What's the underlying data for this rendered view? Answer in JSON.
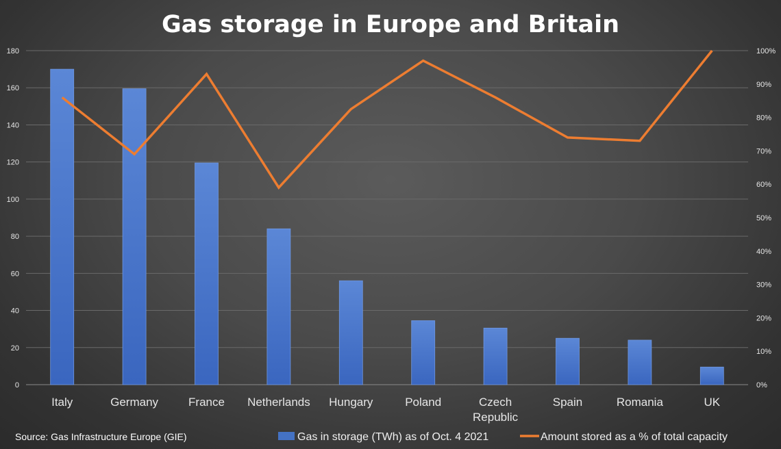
{
  "chart_data": {
    "type": "bar",
    "title": "Gas storage in Europe and Britain",
    "source": "Source: Gas Infrastructure Europe (GIE)",
    "categories": [
      "Italy",
      "Germany",
      "France",
      "Netherlands",
      "Hungary",
      "Poland",
      "Czech Republic",
      "Spain",
      "Romania",
      "UK"
    ],
    "category_lines": [
      [
        "Italy"
      ],
      [
        "Germany"
      ],
      [
        "France"
      ],
      [
        "Netherlands"
      ],
      [
        "Hungary"
      ],
      [
        "Poland"
      ],
      [
        "Czech",
        "Republic"
      ],
      [
        "Spain"
      ],
      [
        "Romania"
      ],
      [
        "UK"
      ]
    ],
    "series": [
      {
        "name": "Gas in storage (TWh) as of Oct. 4 2021",
        "type": "bar",
        "axis": "left",
        "color": "#4472c4",
        "values": [
          170,
          159.5,
          119.5,
          84,
          56,
          34.5,
          30.5,
          25,
          24,
          9.5
        ]
      },
      {
        "name": "Amount stored as a % of total capacity",
        "type": "line",
        "axis": "right",
        "color": "#ed7d31",
        "values": [
          86,
          69,
          93,
          59,
          82.5,
          97,
          86,
          74,
          73,
          100
        ]
      }
    ],
    "y_left": {
      "min": 0,
      "max": 180,
      "ticks": [
        0,
        20,
        40,
        60,
        80,
        100,
        120,
        140,
        160,
        180
      ],
      "tick_labels": [
        "0",
        "20",
        "40",
        "60",
        "80",
        "100",
        "120",
        "140",
        "160",
        "180"
      ]
    },
    "y_right": {
      "min": 0,
      "max": 100,
      "ticks": [
        0,
        10,
        20,
        30,
        40,
        50,
        60,
        70,
        80,
        90,
        100
      ],
      "tick_labels": [
        "0%",
        "10%",
        "20%",
        "30%",
        "40%",
        "50%",
        "60%",
        "70%",
        "80%",
        "90%",
        "100%"
      ]
    },
    "grid": true,
    "legend": "bottom"
  }
}
